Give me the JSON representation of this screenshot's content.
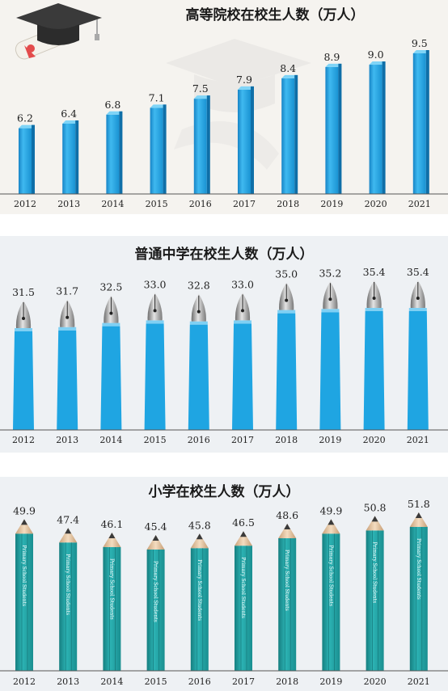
{
  "chart_data": [
    {
      "type": "bar",
      "title": "高等院校在校生人数（万人）",
      "categories": [
        "2012",
        "2013",
        "2014",
        "2015",
        "2016",
        "2017",
        "2018",
        "2019",
        "2020",
        "2021"
      ],
      "values": [
        6.2,
        6.4,
        6.8,
        7.1,
        7.5,
        7.9,
        8.4,
        8.9,
        9.0,
        9.5
      ],
      "value_labels": [
        "6.2",
        "6.4",
        "6.8",
        "7.1",
        "7.5",
        "7.9",
        "8.4",
        "8.9",
        "9.0",
        "9.5"
      ],
      "bar_color": "#29a9e6",
      "decoration_icons": [
        "graduation-cap-icon",
        "diploma-scroll-icon"
      ]
    },
    {
      "type": "bar",
      "title": "普通中学在校生人数（万人）",
      "categories": [
        "2012",
        "2013",
        "2014",
        "2015",
        "2016",
        "2017",
        "2018",
        "2019",
        "2020",
        "2021"
      ],
      "values": [
        31.5,
        31.7,
        32.5,
        33.0,
        32.8,
        33.0,
        35.0,
        35.2,
        35.4,
        35.4
      ],
      "value_labels": [
        "31.5",
        "31.7",
        "32.5",
        "33.0",
        "32.8",
        "33.0",
        "35.0",
        "35.2",
        "35.4",
        "35.4"
      ],
      "bar_color": "#1fa5e2",
      "bar_icon": "fountain-pen-nib-icon"
    },
    {
      "type": "bar",
      "title": "小学在校生人数（万人）",
      "categories": [
        "2012",
        "2013",
        "2014",
        "2015",
        "2016",
        "2017",
        "2018",
        "2019",
        "2020",
        "2021"
      ],
      "values": [
        49.9,
        47.4,
        46.1,
        45.4,
        45.8,
        46.5,
        48.6,
        49.9,
        50.8,
        51.8
      ],
      "value_labels": [
        "49.9",
        "47.4",
        "46.1",
        "45.4",
        "45.8",
        "46.5",
        "48.6",
        "49.9",
        "50.8",
        "51.8"
      ],
      "bar_color": "#23a7a8",
      "bar_icon": "pencil-icon",
      "bar_text": "Primary School Students"
    }
  ]
}
